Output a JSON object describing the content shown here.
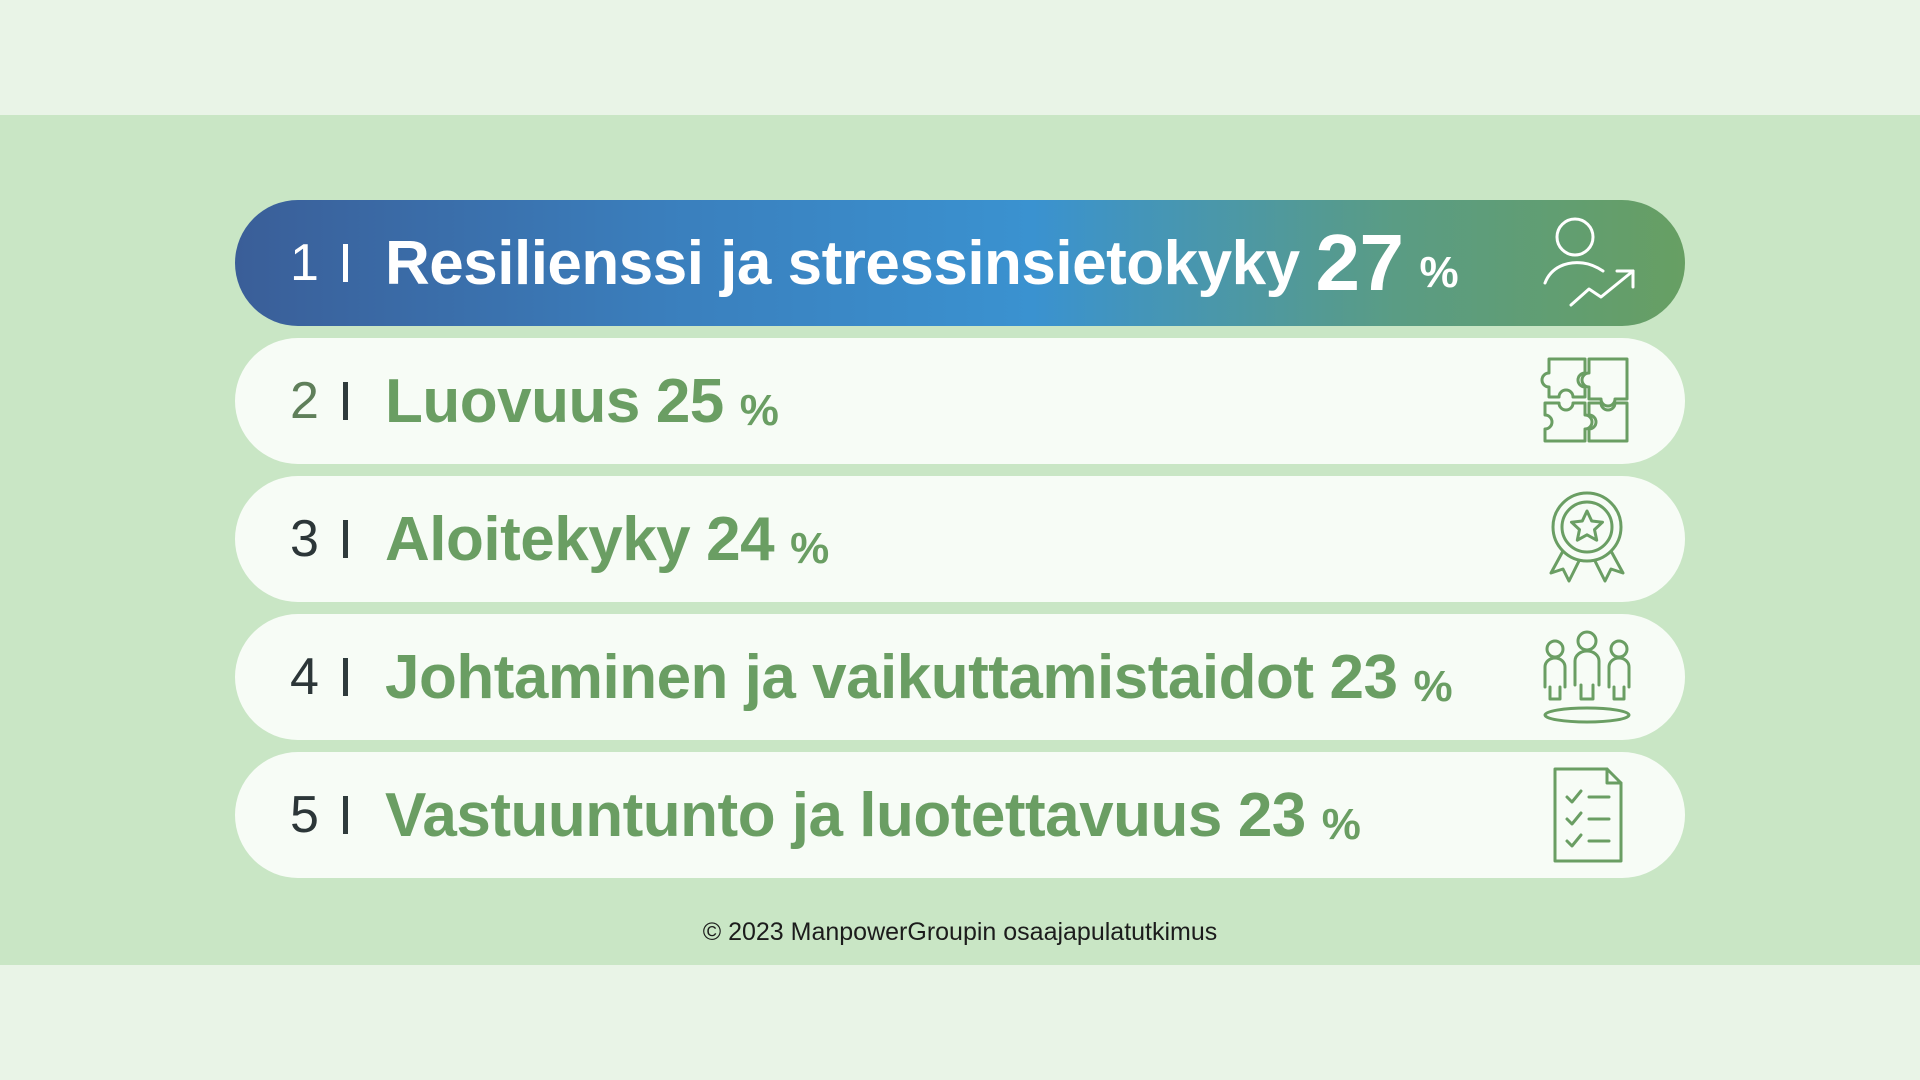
{
  "items": [
    {
      "rank": "1",
      "label": "Resilienssi ja stressinsietokyky",
      "value": "27",
      "unit": "%",
      "icon": "person-growth-icon"
    },
    {
      "rank": "2",
      "label": "Luovuus",
      "value": "25",
      "unit": "%",
      "icon": "puzzle-icon"
    },
    {
      "rank": "3",
      "label": "Aloitekyky",
      "value": "24",
      "unit": "%",
      "icon": "award-badge-icon"
    },
    {
      "rank": "4",
      "label": "Johtaminen ja vaikuttamistaidot",
      "value": "23",
      "unit": "%",
      "icon": "team-leader-icon"
    },
    {
      "rank": "5",
      "label": "Vastuuntunto ja luotettavuus",
      "value": "23",
      "unit": "%",
      "icon": "checklist-icon"
    }
  ],
  "footer": "© 2023 ManpowerGroupin osaajapulatutkimus",
  "colors": {
    "background": "#e9f4e7",
    "band": "#c9e6c5",
    "row": "#f7fcf6",
    "accent_green": "#6a9e63",
    "gradient": [
      "#3a5e98",
      "#3a92d0",
      "#679f63"
    ]
  }
}
